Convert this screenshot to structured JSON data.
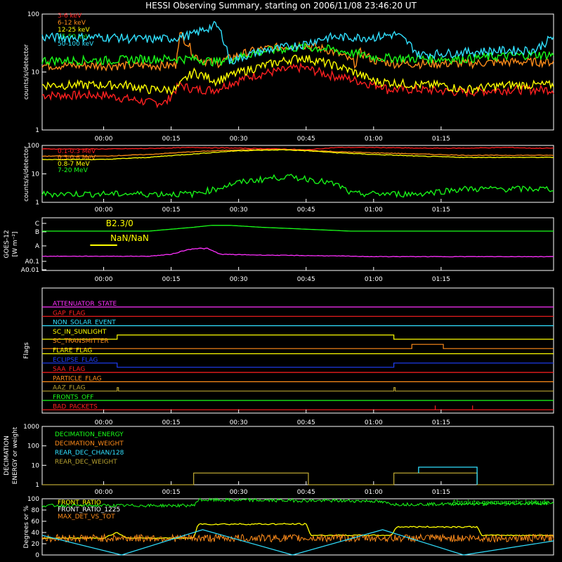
{
  "title": "HESSI Observing Summary, starting on 2006/11/08 23:46:20 UT",
  "time_ticks": [
    "00:00",
    "00:15",
    "00:30",
    "00:45",
    "01:00",
    "01:15"
  ],
  "colors": {
    "red": "#ff2020",
    "orange": "#ff8c1a",
    "yellow": "#ffff00",
    "green": "#19ff19",
    "cyan": "#30e0ff",
    "magenta": "#ff30ff",
    "blue": "#2040ff",
    "olive": "#b5a030",
    "white": "#ffffff"
  },
  "chart_data": [
    {
      "type": "line",
      "panel": "lo-energy",
      "ylabel": "counts/s/detector",
      "yscale": "log",
      "ylim": [
        1,
        100
      ],
      "yticks": [
        "1",
        "10",
        "100"
      ],
      "x_unit": "minutes from 2006/11/08 23:46:20 UT",
      "series": [
        {
          "name": "3-6 keV",
          "color": "red",
          "x": [
            0,
            5,
            10,
            14,
            17,
            20,
            25,
            34,
            44,
            50,
            60,
            62,
            63,
            70,
            80,
            90,
            97,
            100
          ],
          "y": [
            4,
            3.5,
            3,
            3,
            6,
            5,
            5,
            9,
            12,
            9,
            6,
            6,
            5,
            5,
            4.5,
            5,
            5,
            5
          ]
        },
        {
          "name": "6-12 keV",
          "color": "orange",
          "x": [
            0,
            10,
            16,
            17,
            20,
            22,
            25,
            34,
            44,
            50,
            56,
            57,
            60,
            65,
            70,
            75,
            80,
            90,
            100
          ],
          "y": [
            13,
            13,
            13,
            45,
            20,
            16,
            14,
            24,
            30,
            24,
            14,
            22,
            16,
            14,
            14,
            14,
            14,
            15,
            15
          ]
        },
        {
          "name": "12-25 keV",
          "color": "yellow",
          "x": [
            0,
            5,
            10,
            16,
            17,
            20,
            25,
            34,
            44,
            50,
            60,
            70,
            75,
            80,
            90,
            100
          ],
          "y": [
            6,
            6,
            5,
            5,
            6,
            10,
            7,
            12,
            18,
            14,
            7,
            6,
            6,
            5,
            6,
            6
          ]
        },
        {
          "name": "25-50 keV",
          "color": "green",
          "x": [
            0,
            10,
            20,
            25,
            30,
            34,
            44,
            50,
            60,
            70,
            80,
            90,
            95,
            100
          ],
          "y": [
            16,
            17,
            17,
            15,
            18,
            22,
            27,
            25,
            18,
            17,
            17,
            19,
            20,
            20
          ]
        },
        {
          "name": "50-100 keV",
          "color": "cyan",
          "x": [
            0,
            3,
            5,
            10,
            15,
            20,
            25,
            28,
            34,
            44,
            50,
            55,
            60,
            65,
            70,
            80,
            90,
            96,
            100
          ],
          "y": [
            40,
            40,
            38,
            37,
            38,
            45,
            65,
            15,
            22,
            30,
            40,
            40,
            40,
            45,
            20,
            22,
            24,
            24,
            40
          ]
        }
      ]
    },
    {
      "type": "line",
      "panel": "hi-energy",
      "ylabel": "counts/s/detector",
      "yscale": "log",
      "ylim": [
        1,
        100
      ],
      "yticks": [
        "1",
        "10",
        "100"
      ],
      "series": [
        {
          "name": "0.1-0.3 MeV",
          "color": "red",
          "x": [
            0,
            10,
            20,
            30,
            40,
            45,
            52,
            60,
            70,
            80,
            90,
            95,
            100
          ],
          "y": [
            75,
            78,
            85,
            80,
            75,
            70,
            85,
            85,
            80,
            80,
            85,
            80,
            80
          ]
        },
        {
          "name": "0.3-0.8 MeV",
          "color": "orange",
          "x": [
            0,
            10,
            20,
            30,
            40,
            45,
            52,
            60,
            70,
            80,
            90,
            100
          ],
          "y": [
            42,
            48,
            60,
            70,
            72,
            68,
            60,
            55,
            50,
            45,
            45,
            45
          ]
        },
        {
          "name": "0.8-7 MeV",
          "color": "yellow",
          "x": [
            0,
            10,
            20,
            30,
            40,
            45,
            52,
            60,
            70,
            80,
            90,
            100
          ],
          "y": [
            32,
            38,
            50,
            65,
            70,
            65,
            55,
            48,
            42,
            38,
            38,
            38
          ]
        },
        {
          "name": "7-20 MeV",
          "color": "green",
          "x": [
            0,
            10,
            20,
            25,
            30,
            40,
            45,
            52,
            55,
            60,
            70,
            80,
            90,
            100
          ],
          "y": [
            2,
            2,
            2,
            3,
            5,
            8,
            7,
            4,
            2,
            2,
            2,
            3,
            3,
            3
          ]
        }
      ]
    },
    {
      "type": "line",
      "panel": "goes",
      "ylabel": "GOES-12",
      "unit_label": "[W m⁻²]",
      "yticks": [
        "C",
        "B",
        "A",
        "A0.1",
        "A0.01"
      ],
      "annotations": [
        "B2.3/0",
        "NaN/NaN"
      ],
      "series": [
        {
          "color": "green",
          "x": [
            0,
            10,
            20,
            24,
            28,
            35,
            45,
            55,
            65,
            75,
            85,
            100
          ],
          "y": [
            0.8,
            0.8,
            0.9,
            0.95,
            0.95,
            0.9,
            0.85,
            0.8,
            0.8,
            0.8,
            0.8,
            0.8
          ]
        },
        {
          "color": "magenta",
          "x": [
            0,
            10,
            15,
            18,
            20,
            23,
            26,
            35,
            50,
            60,
            70,
            80,
            90,
            100
          ],
          "y": [
            0.15,
            0.15,
            0.2,
            0.3,
            0.35,
            0.35,
            0.2,
            0.18,
            0.16,
            0.14,
            0.14,
            0.14,
            0.14,
            0.14
          ]
        }
      ]
    },
    {
      "type": "table",
      "panel": "flags",
      "ylabel": "Flags",
      "flags": [
        {
          "name": "ATTENUATOR_STATE",
          "color": "magenta"
        },
        {
          "name": "GAP_FLAG",
          "color": "red"
        },
        {
          "name": "NON_SOLAR_EVENT",
          "color": "cyan"
        },
        {
          "name": "SC_IN_SUNLIGHT",
          "color": "yellow"
        },
        {
          "name": "SC_TRANSMITTER",
          "color": "orange"
        },
        {
          "name": "FLARE_FLAG",
          "color": "yellow"
        },
        {
          "name": "ECLIPSE_FLAG",
          "color": "blue"
        },
        {
          "name": "SAA_FLAG",
          "color": "red"
        },
        {
          "name": "PARTICLE_FLAG",
          "color": "orange"
        },
        {
          "name": "AAZ_FLAG",
          "color": "olive"
        },
        {
          "name": "FRONTS_OFF",
          "color": "green"
        },
        {
          "name": "BAD_PACKETS",
          "color": "red"
        }
      ]
    },
    {
      "type": "line",
      "panel": "decimation",
      "ylabel": "DECIMATION ENERGY or weight",
      "yscale": "log",
      "ylim": [
        1,
        1000
      ],
      "yticks": [
        "1",
        "10",
        "100",
        "1000"
      ],
      "series": [
        {
          "name": "DECIMATION_ENERGY",
          "color": "green"
        },
        {
          "name": "DECIMATION_WEIGHT",
          "color": "orange"
        },
        {
          "name": "REAR_DEC_CHAN/128",
          "color": "cyan"
        },
        {
          "name": "REAR_DEC_WEIGHT",
          "color": "olive"
        }
      ]
    },
    {
      "type": "line",
      "panel": "ratios",
      "ylabel": "Degrees or %",
      "ylim": [
        0,
        100
      ],
      "yticks": [
        "0",
        "20",
        "40",
        "60",
        "80",
        "100"
      ],
      "annotation": "Absolute geomagnetic latitude",
      "series": [
        {
          "name": "FRONT_RATIO",
          "color": "yellow"
        },
        {
          "name": "FRONT_RATIO_1225",
          "color": "white"
        },
        {
          "name": "MAX_DET_VS_TOT",
          "color": "orange"
        }
      ]
    }
  ]
}
